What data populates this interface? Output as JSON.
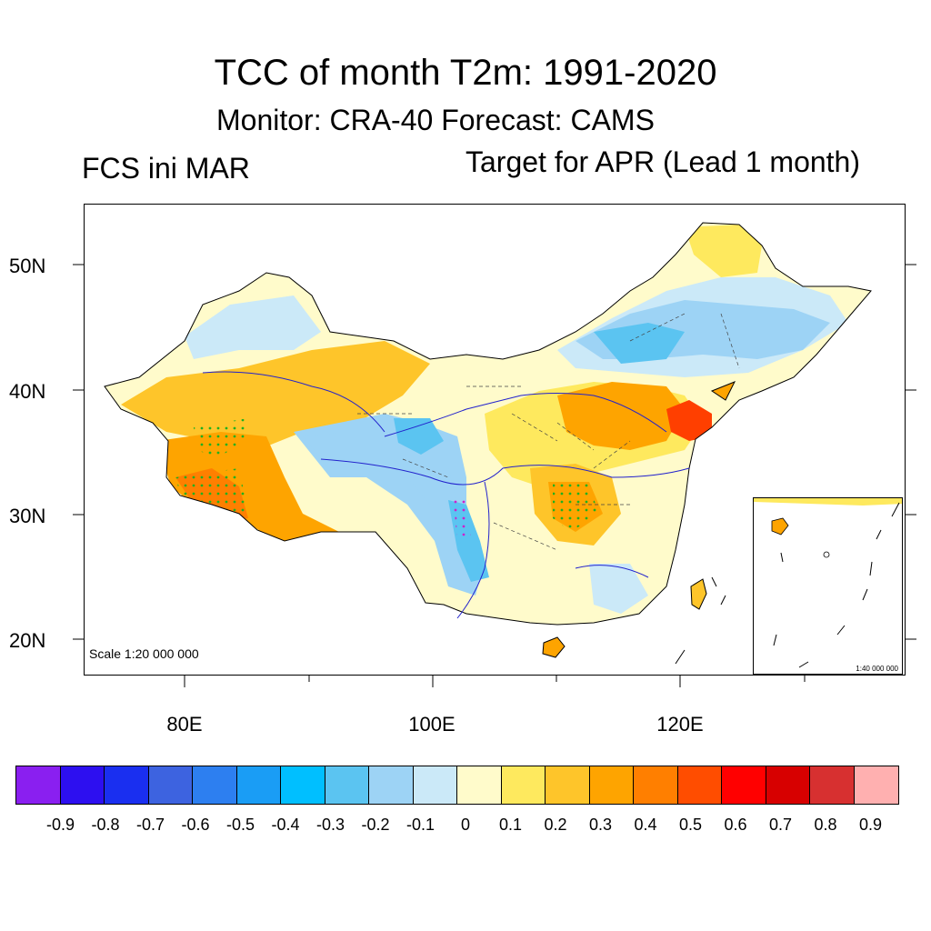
{
  "title": "TCC of month T2m: 1991-2020",
  "subtitle": "Monitor: CRA-40   Forecast: CAMS",
  "left_label": "FCS ini MAR",
  "right_label": "Target for APR (Lead 1 month)",
  "map": {
    "lat_labels": [
      "50N",
      "40N",
      "30N",
      "20N"
    ],
    "lon_labels": [
      "80E",
      "100E",
      "120E"
    ],
    "scale_main": "Scale 1:20 000 000",
    "scale_inset": "1:40 000 000",
    "regions": [
      {
        "name": "northwest-pale",
        "color": "#fffbcb"
      },
      {
        "name": "xinjiang-north-blue",
        "color": "#cbe9f8"
      },
      {
        "name": "xinjiang-orange",
        "color": "#fec52a"
      },
      {
        "name": "tibet-orange",
        "color": "#fea400"
      },
      {
        "name": "tibet-hotspot",
        "color": "#ff7f00"
      },
      {
        "name": "qinghai-blue",
        "color": "#9dd3f5"
      },
      {
        "name": "qinghai-blue-core",
        "color": "#5bc4f1"
      },
      {
        "name": "sichuan-blue",
        "color": "#5bc4f1"
      },
      {
        "name": "mongolia-blue",
        "color": "#9dd3f5"
      },
      {
        "name": "mongolia-blue-core",
        "color": "#5bc4f1"
      },
      {
        "name": "northeast-pale",
        "color": "#cbe9f8"
      },
      {
        "name": "heilongjiang-yellow",
        "color": "#fee95e"
      },
      {
        "name": "north-china-orange",
        "color": "#fea400"
      },
      {
        "name": "shandong-red",
        "color": "#ff3f00"
      },
      {
        "name": "central-orange",
        "color": "#fec52a"
      },
      {
        "name": "hubei-hotspot",
        "color": "#fea400"
      },
      {
        "name": "south-yellow",
        "color": "#fee95e"
      },
      {
        "name": "guangxi-blue",
        "color": "#cbe9f8"
      },
      {
        "name": "hainan-orange",
        "color": "#fea400"
      },
      {
        "name": "taiwan-yellow",
        "color": "#fec52a"
      }
    ]
  },
  "colorbar": {
    "colors": [
      "#8a1ff0",
      "#2d0ff0",
      "#1a2ff0",
      "#3d63e0",
      "#2d7ff0",
      "#1a9df5",
      "#00bfff",
      "#5bc4f1",
      "#9dd3f5",
      "#cbe9f8",
      "#fffbcb",
      "#fee95e",
      "#fec52a",
      "#fea400",
      "#ff7f00",
      "#ff4d00",
      "#ff0000",
      "#d70000",
      "#d73030",
      "#ffb0b0"
    ],
    "labels": [
      "-0.9",
      "-0.8",
      "-0.7",
      "-0.6",
      "-0.5",
      "-0.4",
      "-0.3",
      "-0.2",
      "-0.1",
      "0",
      "0.1",
      "0.2",
      "0.3",
      "0.4",
      "0.5",
      "0.6",
      "0.7",
      "0.8",
      "0.9"
    ]
  }
}
